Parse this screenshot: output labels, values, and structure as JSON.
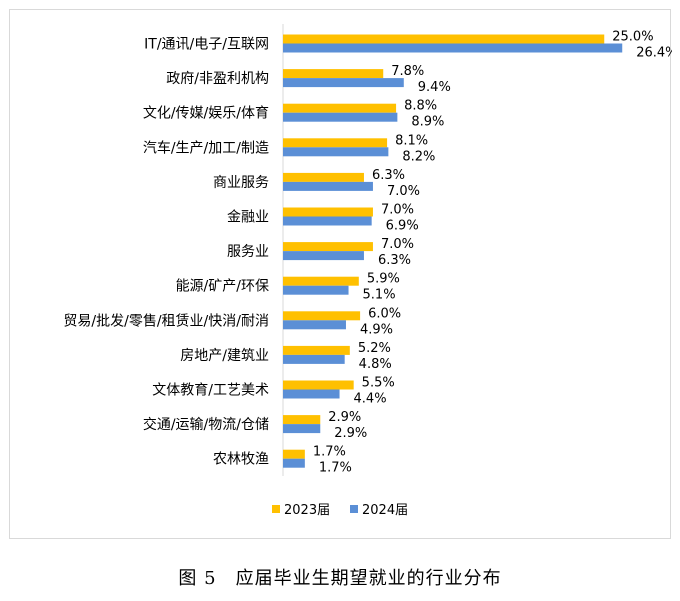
{
  "caption": "图 5　应届毕业生期望就业的行业分布",
  "chart_data": {
    "type": "bar",
    "orientation": "horizontal",
    "categories": [
      "IT/通讯/电子/互联网",
      "政府/非盈利机构",
      "文化/传媒/娱乐/体育",
      "汽车/生产/加工/制造",
      "商业服务",
      "金融业",
      "服务业",
      "能源/矿产/环保",
      "贸易/批发/零售/租赁业/快消/耐消",
      "房地产/建筑业",
      "文体教育/工艺美术",
      "交通/运输/物流/仓储",
      "农林牧渔"
    ],
    "series": [
      {
        "name": "2023届",
        "color": "#FFC000",
        "values": [
          25.0,
          7.8,
          8.8,
          8.1,
          6.3,
          7.0,
          7.0,
          5.9,
          6.0,
          5.2,
          5.5,
          2.9,
          1.7
        ],
        "labels": [
          "25.0%",
          "7.8%",
          "8.8%",
          "8.1%",
          "6.3%",
          "7.0%",
          "7.0%",
          "5.9%",
          "6.0%",
          "5.2%",
          "5.5%",
          "2.9%",
          "1.7%"
        ]
      },
      {
        "name": "2024届",
        "color": "#5B8FD6",
        "values": [
          26.4,
          9.4,
          8.9,
          8.2,
          7.0,
          6.9,
          6.3,
          5.1,
          4.9,
          4.8,
          4.4,
          2.9,
          1.7
        ],
        "labels": [
          "26.4%",
          "9.4%",
          "8.9%",
          "8.2%",
          "7.0%",
          "6.9%",
          "6.3%",
          "5.1%",
          "4.9%",
          "4.8%",
          "4.4%",
          "2.9%",
          "1.7%"
        ]
      }
    ],
    "unit": "%",
    "legend_position": "bottom",
    "grid": false,
    "xlim": [
      0,
      30
    ]
  }
}
